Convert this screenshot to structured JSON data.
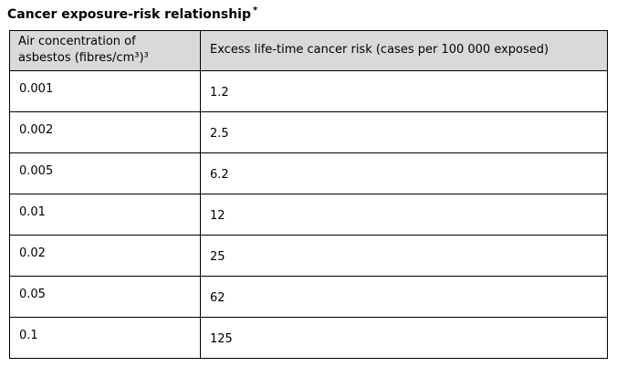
{
  "page": {
    "title": "Cancer exposure-risk relationship",
    "title_superscript": "*"
  },
  "table": {
    "col1_header": "Air concentration of asbestos (fibres/cm³)³",
    "col2_header": "Excess life-time cancer risk (cases per 100 000 exposed)",
    "rows": [
      {
        "concentration": "0.001",
        "risk": "1.2"
      },
      {
        "concentration": "0.002",
        "risk": "2.5"
      },
      {
        "concentration": "0.005",
        "risk": "6.2"
      },
      {
        "concentration": "0.01",
        "risk": "12"
      },
      {
        "concentration": "0.02",
        "risk": "25"
      },
      {
        "concentration": "0.05",
        "risk": "62"
      },
      {
        "concentration": "0.1",
        "risk": "125"
      }
    ],
    "colors": {
      "header_background": "#d9d9d9",
      "border": "#000000",
      "text": "#000000"
    }
  }
}
